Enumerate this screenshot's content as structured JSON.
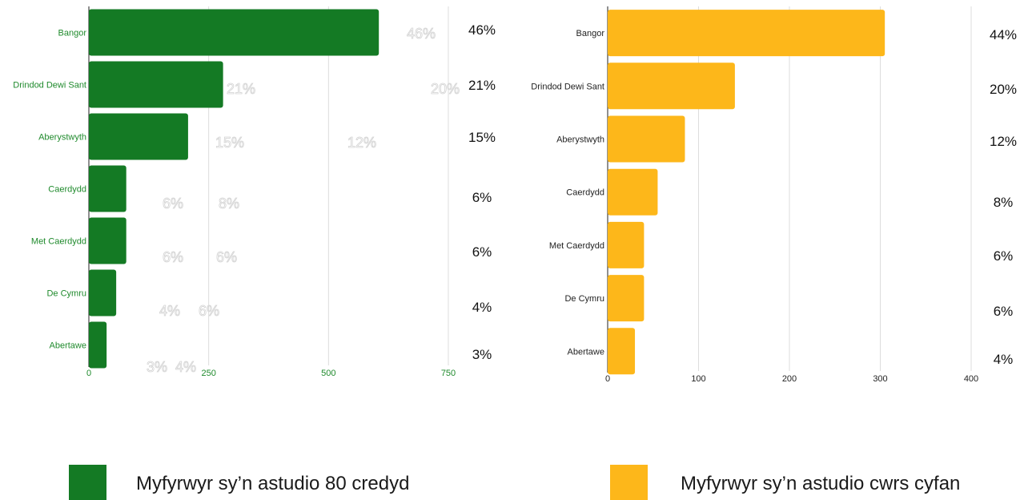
{
  "chart_data": [
    {
      "type": "bar",
      "orientation": "horizontal",
      "categories": [
        "Bangor",
        "Drindod Dewi Sant",
        "Aberystwyth",
        "Caerdydd",
        "Met Caerdydd",
        "De Cymru",
        "Abertawe"
      ],
      "values": [
        605,
        280,
        207,
        78,
        78,
        57,
        37
      ],
      "xlim": [
        0,
        750
      ],
      "xticks": [
        "0",
        "250",
        "500",
        "750"
      ],
      "percent_labels": [
        "46%",
        "21%",
        "15%",
        "6%",
        "6%",
        "4%",
        "3%"
      ],
      "ghost_labels": [
        "46%",
        "21%",
        "20%",
        "15%",
        "12%",
        "6%",
        "8%",
        "6%",
        "6%",
        "4%",
        "6%",
        "3%",
        "4%"
      ],
      "color": "#147a24",
      "label_color": "#1f8a2c",
      "grid": true,
      "legend": "Myfyrwyr sy’n astudio 80 credyd"
    },
    {
      "type": "bar",
      "orientation": "horizontal",
      "categories": [
        "Bangor",
        "Drindod Dewi Sant",
        "Aberystwyth",
        "Caerdydd",
        "Met Caerdydd",
        "De Cymru",
        "Abertawe"
      ],
      "values": [
        305,
        140,
        85,
        55,
        40,
        40,
        30
      ],
      "xlim": [
        0,
        400
      ],
      "xticks": [
        "0",
        "100",
        "200",
        "300",
        "400"
      ],
      "percent_labels": [
        "44%",
        "20%",
        "12%",
        "8%",
        "6%",
        "6%",
        "4%"
      ],
      "color": "#fdb71a",
      "label_color": "#222222",
      "grid": true,
      "legend": "Myfyrwyr sy’n astudio cwrs cyfan"
    }
  ]
}
